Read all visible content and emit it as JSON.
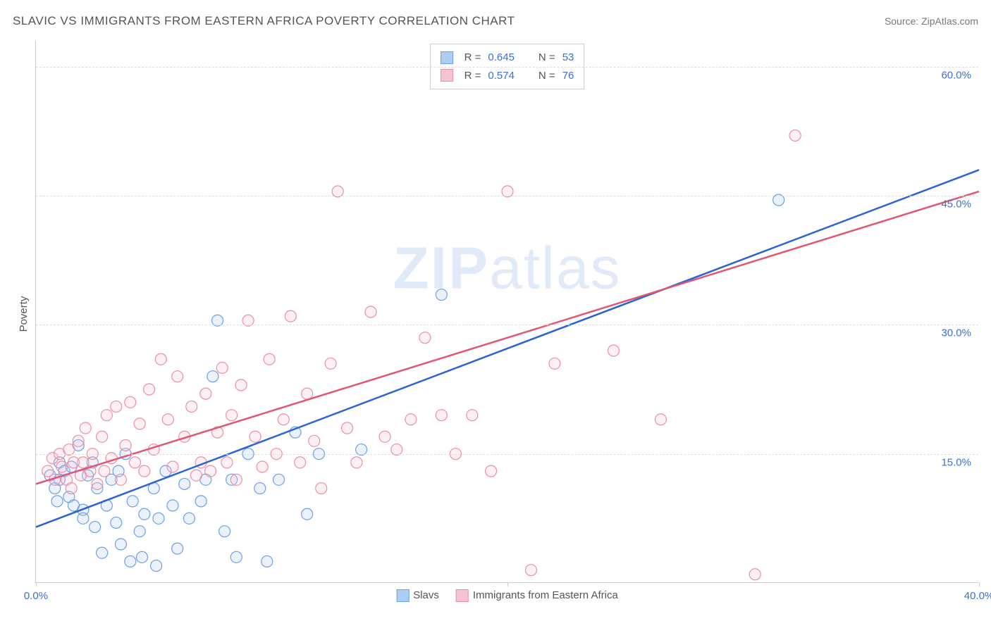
{
  "title": "SLAVIC VS IMMIGRANTS FROM EASTERN AFRICA POVERTY CORRELATION CHART",
  "source": "Source: ZipAtlas.com",
  "ylabel": "Poverty",
  "watermark_bold": "ZIP",
  "watermark_light": "atlas",
  "chart": {
    "type": "scatter-with-trend",
    "xlim": [
      0,
      40
    ],
    "ylim": [
      0,
      63
    ],
    "x_ticks": [
      0,
      20,
      40
    ],
    "x_tick_labels": [
      "0.0%",
      "",
      "40.0%"
    ],
    "y_ticks": [
      15,
      30,
      45,
      60
    ],
    "y_tick_labels": [
      "15.0%",
      "30.0%",
      "45.0%",
      "60.0%"
    ],
    "background_color": "#ffffff",
    "grid_color": "#dddddd",
    "axis_color": "#cccccc",
    "tick_font_color": "#3b6fd6",
    "label_font_color": "#555555",
    "marker_radius": 8,
    "marker_stroke_width": 1.2,
    "marker_fill_opacity": 0.25,
    "trend_line_width": 2.5,
    "series": [
      {
        "name": "Slavs",
        "color_stroke": "#6b9fe8",
        "color_fill": "#aecdf2",
        "trend_color": "#2a63d6",
        "R": "0.645",
        "N": "53",
        "trend": {
          "x1": 0,
          "y1": 6.5,
          "x2": 40,
          "y2": 48
        },
        "points": [
          [
            0.6,
            12.5
          ],
          [
            0.8,
            11
          ],
          [
            1.0,
            14
          ],
          [
            0.9,
            9.5
          ],
          [
            1.2,
            13
          ],
          [
            1.4,
            10
          ],
          [
            1.0,
            12
          ],
          [
            1.5,
            13.5
          ],
          [
            1.6,
            9
          ],
          [
            1.8,
            16
          ],
          [
            2.0,
            8.5
          ],
          [
            2.2,
            12.5
          ],
          [
            2.0,
            7.5
          ],
          [
            2.4,
            14
          ],
          [
            2.6,
            11
          ],
          [
            2.5,
            6.5
          ],
          [
            2.8,
            3.5
          ],
          [
            3.0,
            9
          ],
          [
            3.2,
            12
          ],
          [
            3.4,
            7
          ],
          [
            3.6,
            4.5
          ],
          [
            3.5,
            13
          ],
          [
            3.8,
            15
          ],
          [
            4.0,
            2.5
          ],
          [
            4.1,
            9.5
          ],
          [
            4.4,
            6
          ],
          [
            4.6,
            8
          ],
          [
            4.5,
            3
          ],
          [
            5.0,
            11
          ],
          [
            5.2,
            7.5
          ],
          [
            5.1,
            2
          ],
          [
            5.5,
            13
          ],
          [
            5.8,
            9
          ],
          [
            6.0,
            4
          ],
          [
            6.3,
            11.5
          ],
          [
            6.5,
            7.5
          ],
          [
            7.0,
            9.5
          ],
          [
            7.2,
            12
          ],
          [
            7.5,
            24
          ],
          [
            7.7,
            30.5
          ],
          [
            8.0,
            6
          ],
          [
            8.3,
            12
          ],
          [
            8.5,
            3
          ],
          [
            9.0,
            15
          ],
          [
            9.5,
            11
          ],
          [
            9.8,
            2.5
          ],
          [
            10.3,
            12
          ],
          [
            11.0,
            17.5
          ],
          [
            11.5,
            8
          ],
          [
            12.0,
            15
          ],
          [
            13.8,
            15.5
          ],
          [
            17.2,
            33.5
          ],
          [
            31.5,
            44.5
          ]
        ]
      },
      {
        "name": "Immigrants from Eastern Africa",
        "color_stroke": "#e98fa7",
        "color_fill": "#f6c4d1",
        "trend_color": "#e15672",
        "R": "0.574",
        "N": "76",
        "trend": {
          "x1": 0,
          "y1": 11.5,
          "x2": 40,
          "y2": 45.5
        },
        "points": [
          [
            0.5,
            13
          ],
          [
            0.7,
            14.5
          ],
          [
            0.8,
            12
          ],
          [
            1.0,
            15
          ],
          [
            1.1,
            13.5
          ],
          [
            1.3,
            12
          ],
          [
            1.4,
            15.5
          ],
          [
            1.5,
            11
          ],
          [
            1.6,
            14
          ],
          [
            1.8,
            16.5
          ],
          [
            1.9,
            12.5
          ],
          [
            2.0,
            14
          ],
          [
            2.1,
            18
          ],
          [
            2.3,
            13
          ],
          [
            2.4,
            15
          ],
          [
            2.6,
            11.5
          ],
          [
            2.8,
            17
          ],
          [
            2.9,
            13
          ],
          [
            3.0,
            19.5
          ],
          [
            3.2,
            14.5
          ],
          [
            3.4,
            20.5
          ],
          [
            3.6,
            12
          ],
          [
            3.8,
            16
          ],
          [
            4.0,
            21
          ],
          [
            4.2,
            14
          ],
          [
            4.4,
            18.5
          ],
          [
            4.6,
            13
          ],
          [
            4.8,
            22.5
          ],
          [
            5.0,
            15.5
          ],
          [
            5.3,
            26
          ],
          [
            5.6,
            19
          ],
          [
            5.8,
            13.5
          ],
          [
            6.0,
            24
          ],
          [
            6.3,
            17
          ],
          [
            6.6,
            20.5
          ],
          [
            6.8,
            12.5
          ],
          [
            7.0,
            14
          ],
          [
            7.2,
            22
          ],
          [
            7.4,
            13
          ],
          [
            7.7,
            17.5
          ],
          [
            7.9,
            25
          ],
          [
            8.1,
            14
          ],
          [
            8.3,
            19.5
          ],
          [
            8.5,
            12
          ],
          [
            8.7,
            23
          ],
          [
            9.0,
            30.5
          ],
          [
            9.3,
            17
          ],
          [
            9.6,
            13.5
          ],
          [
            9.9,
            26
          ],
          [
            10.2,
            15
          ],
          [
            10.5,
            19
          ],
          [
            10.8,
            31
          ],
          [
            11.2,
            14
          ],
          [
            11.5,
            22
          ],
          [
            11.8,
            16.5
          ],
          [
            12.1,
            11
          ],
          [
            12.5,
            25.5
          ],
          [
            12.8,
            45.5
          ],
          [
            13.2,
            18
          ],
          [
            13.6,
            14
          ],
          [
            14.2,
            31.5
          ],
          [
            14.8,
            17
          ],
          [
            15.3,
            15.5
          ],
          [
            15.9,
            19
          ],
          [
            16.5,
            28.5
          ],
          [
            17.2,
            19.5
          ],
          [
            17.8,
            15
          ],
          [
            18.5,
            19.5
          ],
          [
            19.3,
            13
          ],
          [
            20.0,
            45.5
          ],
          [
            21.0,
            1.5
          ],
          [
            22.0,
            25.5
          ],
          [
            24.5,
            27
          ],
          [
            26.5,
            19
          ],
          [
            30.5,
            1
          ],
          [
            32.2,
            52
          ]
        ]
      }
    ]
  },
  "bottom_legend": [
    {
      "swatch_fill": "#aecdf2",
      "swatch_stroke": "#6b9fe8",
      "label": "Slavs"
    },
    {
      "swatch_fill": "#f6c4d1",
      "swatch_stroke": "#e98fa7",
      "label": "Immigrants from Eastern Africa"
    }
  ]
}
